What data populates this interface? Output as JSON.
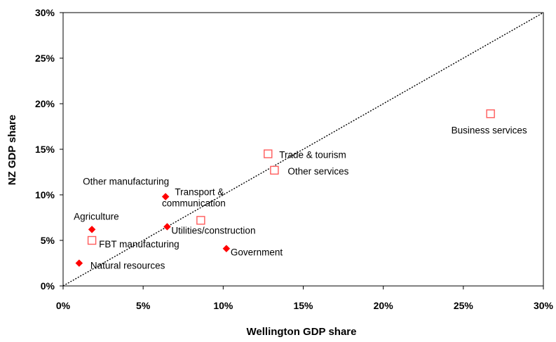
{
  "chart_data": {
    "type": "scatter",
    "title": "",
    "xlabel": "Wellington GDP share",
    "ylabel": "NZ GDP share",
    "xlim": [
      0,
      30
    ],
    "ylim": [
      0,
      30
    ],
    "x_ticks": [
      "0%",
      "5%",
      "10%",
      "15%",
      "20%",
      "25%",
      "30%"
    ],
    "y_ticks": [
      "0%",
      "5%",
      "10%",
      "15%",
      "20%",
      "25%",
      "30%"
    ],
    "grid": false,
    "legend": "none",
    "reference_line": {
      "type": "diagonal",
      "style": "dotted",
      "from": [
        0,
        0
      ],
      "to": [
        30,
        30
      ]
    },
    "colors": {
      "marker": "#ff0000",
      "marker_hollow": "#ff5a5a",
      "axis": "#000000"
    },
    "points": [
      {
        "label": "Business services",
        "x": 26.7,
        "y": 18.9,
        "marker": "square-open"
      },
      {
        "label": "Trade & tourism",
        "x": 12.8,
        "y": 14.5,
        "marker": "square-open"
      },
      {
        "label": "Other services",
        "x": 13.2,
        "y": 12.7,
        "marker": "square-open"
      },
      {
        "label": "Other manufacturing",
        "x": 6.4,
        "y": 9.8,
        "marker": "diamond"
      },
      {
        "label": "Transport & communication",
        "x": 8.6,
        "y": 7.2,
        "marker": "square-open"
      },
      {
        "label": "Utilities/construction",
        "x": 6.5,
        "y": 6.5,
        "marker": "diamond"
      },
      {
        "label": "Agriculture",
        "x": 1.8,
        "y": 6.2,
        "marker": "diamond"
      },
      {
        "label": "FBT manufacturing",
        "x": 1.8,
        "y": 5.0,
        "marker": "square-open"
      },
      {
        "label": "Government",
        "x": 10.2,
        "y": 4.1,
        "marker": "diamond"
      },
      {
        "label": "Natural resources",
        "x": 1.0,
        "y": 2.5,
        "marker": "diamond"
      }
    ]
  }
}
